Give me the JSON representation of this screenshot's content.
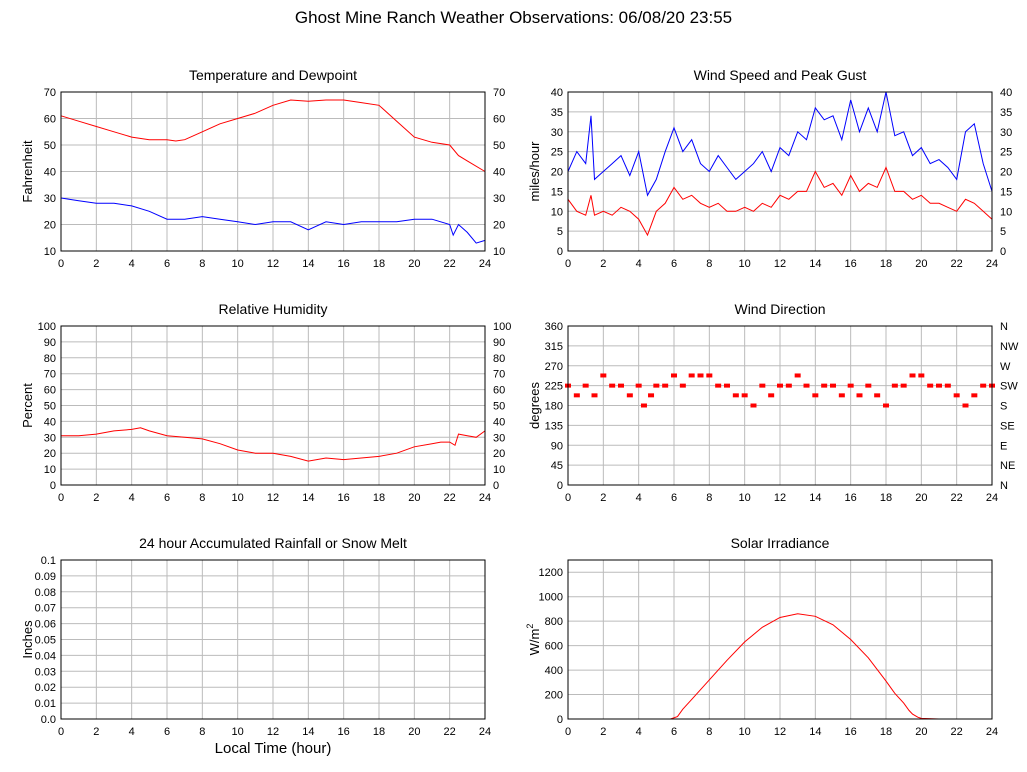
{
  "page": {
    "title": "Ghost Mine Ranch Weather Observations: 06/08/20 23:55"
  },
  "colors": {
    "primary": "#ff0000",
    "secondary": "#0000ff",
    "grid": "#bbbbbb",
    "frame": "#000000"
  },
  "chart_data": [
    {
      "id": "temperature",
      "type": "line",
      "title": "Temperature and Dewpoint",
      "ylabel": "Fahrenheit",
      "xlabel": "",
      "xlim": [
        0,
        24
      ],
      "ylim": [
        10,
        70
      ],
      "xticks": [
        "0",
        "2",
        "4",
        "6",
        "8",
        "10",
        "12",
        "14",
        "16",
        "18",
        "20",
        "22",
        "24"
      ],
      "yticks": [
        "10",
        "20",
        "30",
        "40",
        "50",
        "60",
        "70"
      ],
      "right_yticks": [
        "10",
        "20",
        "30",
        "40",
        "50",
        "60",
        "70"
      ],
      "series": [
        {
          "color": "#ff0000",
          "x": [
            0,
            1,
            2,
            3,
            4,
            5,
            6,
            6.5,
            7,
            8,
            9,
            10,
            11,
            12,
            13,
            14,
            15,
            16,
            17,
            18,
            19,
            20,
            21,
            22,
            22.5,
            23,
            24
          ],
          "y": [
            61,
            59,
            57,
            55,
            53,
            52,
            52,
            51.5,
            52,
            55,
            58,
            60,
            62,
            65,
            67,
            66.5,
            67,
            67,
            66,
            65,
            59,
            53,
            51,
            50,
            46,
            44,
            40
          ]
        },
        {
          "color": "#0000ff",
          "x": [
            0,
            1,
            2,
            3,
            4,
            5,
            6,
            7,
            8,
            9,
            10,
            11,
            12,
            13,
            14,
            15,
            16,
            17,
            18,
            19,
            20,
            21,
            22,
            22.2,
            22.5,
            23,
            23.5,
            24
          ],
          "y": [
            30,
            29,
            28,
            28,
            27,
            25,
            22,
            22,
            23,
            22,
            21,
            20,
            21,
            21,
            18,
            21,
            20,
            21,
            21,
            21,
            22,
            22,
            20,
            16,
            20,
            17,
            13,
            14
          ]
        }
      ]
    },
    {
      "id": "wind-speed",
      "type": "line",
      "title": "Wind Speed and Peak Gust",
      "ylabel": "miles/hour",
      "xlabel": "",
      "xlim": [
        0,
        24
      ],
      "ylim": [
        0,
        40
      ],
      "xticks": [
        "0",
        "2",
        "4",
        "6",
        "8",
        "10",
        "12",
        "14",
        "16",
        "18",
        "20",
        "22",
        "24"
      ],
      "yticks": [
        "0",
        "5",
        "10",
        "15",
        "20",
        "25",
        "30",
        "35",
        "40"
      ],
      "right_yticks": [
        "0",
        "5",
        "10",
        "15",
        "20",
        "25",
        "30",
        "35",
        "40"
      ],
      "series": [
        {
          "color": "#0000ff",
          "x": [
            0,
            0.5,
            1,
            1.3,
            1.5,
            2,
            2.5,
            3,
            3.5,
            4,
            4.5,
            5,
            5.5,
            6,
            6.5,
            7,
            7.5,
            8,
            8.5,
            9,
            9.5,
            10,
            10.5,
            11,
            11.5,
            12,
            12.5,
            13,
            13.5,
            14,
            14.5,
            15,
            15.5,
            16,
            16.5,
            17,
            17.5,
            18,
            18.5,
            19,
            19.5,
            20,
            20.5,
            21,
            21.5,
            22,
            22.5,
            23,
            23.5,
            24
          ],
          "y": [
            20,
            25,
            22,
            34,
            18,
            20,
            22,
            24,
            19,
            25,
            14,
            18,
            25,
            31,
            25,
            28,
            22,
            20,
            24,
            21,
            18,
            20,
            22,
            25,
            20,
            26,
            24,
            30,
            28,
            36,
            33,
            34,
            28,
            38,
            30,
            36,
            30,
            40,
            29,
            30,
            24,
            26,
            22,
            23,
            21,
            18,
            30,
            32,
            22,
            15
          ]
        },
        {
          "color": "#ff0000",
          "x": [
            0,
            0.5,
            1,
            1.3,
            1.5,
            2,
            2.5,
            3,
            3.5,
            4,
            4.5,
            5,
            5.5,
            6,
            6.5,
            7,
            7.5,
            8,
            8.5,
            9,
            9.5,
            10,
            10.5,
            11,
            11.5,
            12,
            12.5,
            13,
            13.5,
            14,
            14.5,
            15,
            15.5,
            16,
            16.5,
            17,
            17.5,
            18,
            18.5,
            19,
            19.5,
            20,
            20.5,
            21,
            21.5,
            22,
            22.5,
            23,
            23.5,
            24
          ],
          "y": [
            13,
            10,
            9,
            14,
            9,
            10,
            9,
            11,
            10,
            8,
            4,
            10,
            12,
            16,
            13,
            14,
            12,
            11,
            12,
            10,
            10,
            11,
            10,
            12,
            11,
            14,
            13,
            15,
            15,
            20,
            16,
            17,
            14,
            19,
            15,
            17,
            16,
            21,
            15,
            15,
            13,
            14,
            12,
            12,
            11,
            10,
            13,
            12,
            10,
            8
          ]
        }
      ]
    },
    {
      "id": "humidity",
      "type": "line",
      "title": "Relative Humidity",
      "ylabel": "Percent",
      "xlabel": "",
      "xlim": [
        0,
        24
      ],
      "ylim": [
        0,
        100
      ],
      "xticks": [
        "0",
        "2",
        "4",
        "6",
        "8",
        "10",
        "12",
        "14",
        "16",
        "18",
        "20",
        "22",
        "24"
      ],
      "yticks": [
        "0",
        "10",
        "20",
        "30",
        "40",
        "50",
        "60",
        "70",
        "80",
        "90",
        "100"
      ],
      "right_yticks": [
        "0",
        "10",
        "20",
        "30",
        "40",
        "50",
        "60",
        "70",
        "80",
        "90",
        "100"
      ],
      "series": [
        {
          "color": "#ff0000",
          "x": [
            0,
            1,
            2,
            3,
            4,
            4.5,
            5,
            6,
            7,
            8,
            9,
            10,
            11,
            12,
            13,
            14,
            15,
            16,
            17,
            18,
            19,
            20,
            21,
            21.5,
            22,
            22.3,
            22.5,
            23,
            23.5,
            24
          ],
          "y": [
            31,
            31,
            32,
            34,
            35,
            36,
            34,
            31,
            30,
            29,
            26,
            22,
            20,
            20,
            18,
            15,
            17,
            16,
            17,
            18,
            20,
            24,
            26,
            27,
            27,
            25,
            32,
            31,
            30,
            34
          ]
        }
      ]
    },
    {
      "id": "wind-direction",
      "type": "scatter",
      "title": "Wind Direction",
      "ylabel": "degrees",
      "xlabel": "",
      "xlim": [
        0,
        24
      ],
      "ylim": [
        0,
        360
      ],
      "xticks": [
        "0",
        "2",
        "4",
        "6",
        "8",
        "10",
        "12",
        "14",
        "16",
        "18",
        "20",
        "22",
        "24"
      ],
      "yticks": [
        "0",
        "45",
        "90",
        "135",
        "180",
        "225",
        "270",
        "315",
        "360"
      ],
      "right_yticks": [
        "N",
        "NE",
        "E",
        "SE",
        "S",
        "SW",
        "W",
        "NW",
        "N"
      ],
      "series": [
        {
          "color": "#ff0000",
          "x": [
            0,
            0.5,
            1,
            1.5,
            2,
            2.5,
            3,
            3.5,
            4,
            4.3,
            4.7,
            5,
            5.5,
            6,
            6.5,
            7,
            7.5,
            8,
            8.5,
            9,
            9.5,
            10,
            10.5,
            11,
            11.5,
            12,
            12.5,
            13,
            13.5,
            14,
            14.5,
            15,
            15.5,
            16,
            16.5,
            17,
            17.5,
            18,
            18.5,
            19,
            19.5,
            20,
            20.5,
            21,
            21.5,
            22,
            22.5,
            23,
            23.5,
            24
          ],
          "y": [
            225,
            203,
            225,
            203,
            248,
            225,
            225,
            203,
            225,
            180,
            203,
            225,
            225,
            248,
            225,
            248,
            248,
            248,
            225,
            225,
            203,
            203,
            180,
            225,
            203,
            225,
            225,
            248,
            225,
            203,
            225,
            225,
            203,
            225,
            203,
            225,
            203,
            180,
            225,
            225,
            248,
            248,
            225,
            225,
            225,
            203,
            180,
            203,
            225,
            225
          ]
        }
      ]
    },
    {
      "id": "rainfall",
      "type": "line",
      "title": "24 hour Accumulated Rainfall or Snow Melt",
      "ylabel": "Inches",
      "xlabel": "Local Time (hour)",
      "xlim": [
        0,
        24
      ],
      "ylim": [
        0,
        0.1
      ],
      "xticks": [
        "0",
        "2",
        "4",
        "6",
        "8",
        "10",
        "12",
        "14",
        "16",
        "18",
        "20",
        "22",
        "24"
      ],
      "yticks": [
        "0.0",
        "0.01",
        "0.02",
        "0.03",
        "0.04",
        "0.05",
        "0.06",
        "0.07",
        "0.08",
        "0.09",
        "0.1"
      ],
      "right_yticks": [],
      "series": [
        {
          "color": "#ff0000",
          "x": [
            0,
            24
          ],
          "y": [
            0,
            0
          ]
        }
      ]
    },
    {
      "id": "solar",
      "type": "line",
      "title": "Solar Irradiance",
      "ylabel": "W/m",
      "ylabel_sup": "2",
      "xlabel": "",
      "xlim": [
        0,
        24
      ],
      "ylim": [
        0,
        1300
      ],
      "xticks": [
        "0",
        "2",
        "4",
        "6",
        "8",
        "10",
        "12",
        "14",
        "16",
        "18",
        "20",
        "22",
        "24"
      ],
      "yticks": [
        "0",
        "200",
        "400",
        "600",
        "800",
        "1000",
        "1200"
      ],
      "ytick_values": [
        0,
        200,
        400,
        600,
        800,
        1000,
        1200
      ],
      "right_yticks": [],
      "series": [
        {
          "color": "#ff0000",
          "x": [
            0,
            5.8,
            6.2,
            6.5,
            7,
            8,
            9,
            10,
            11,
            12,
            13,
            14,
            15,
            16,
            17,
            18,
            18.5,
            19,
            19.3,
            19.5,
            19.8,
            20,
            21,
            24
          ],
          "y": [
            0,
            0,
            20,
            80,
            160,
            320,
            480,
            630,
            750,
            830,
            860,
            840,
            770,
            650,
            500,
            310,
            210,
            130,
            70,
            40,
            15,
            5,
            0,
            0
          ]
        }
      ]
    }
  ]
}
